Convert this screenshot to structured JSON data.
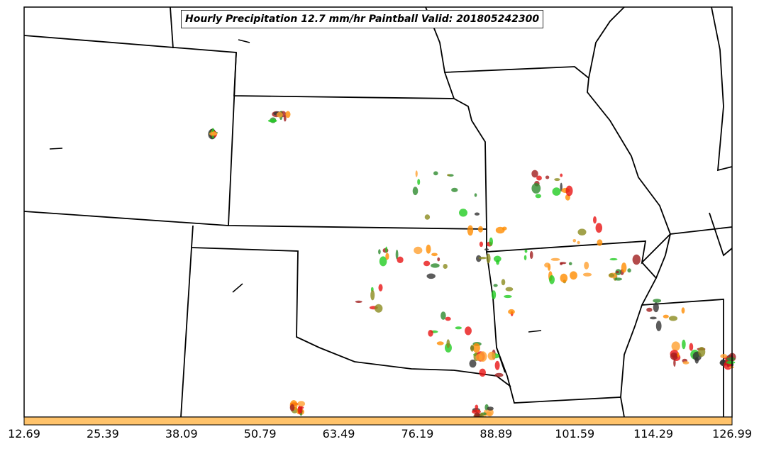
{
  "title": "Hourly Precipitation 12.7 mm/hr Paintball Valid: 201805242300",
  "colorbar": {
    "fill_color": "#ffc36b",
    "tick_labels": [
      "12.69",
      "25.39",
      "38.09",
      "50.79",
      "63.49",
      "76.19",
      "88.89",
      "101.59",
      "114.29",
      "126.99"
    ]
  },
  "paint_colors": [
    "#e81414",
    "#a01e1e",
    "#2e8b2e",
    "#22cc22",
    "#8b8b1e",
    "#ff8c00",
    "#ffa030",
    "#333333"
  ]
}
